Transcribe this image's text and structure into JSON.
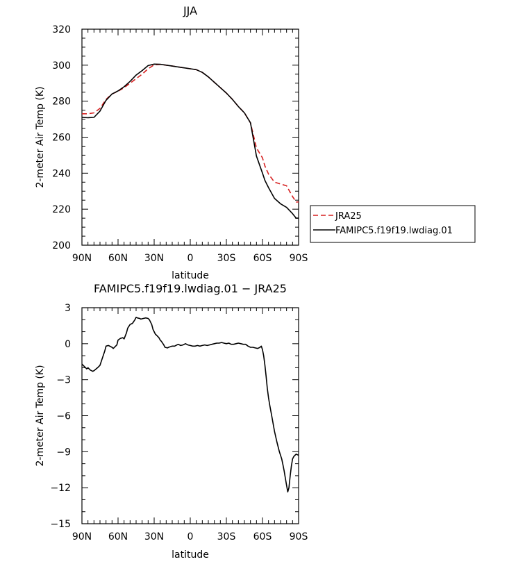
{
  "chart_data": [
    {
      "type": "line",
      "title": "JJA",
      "xlabel": "latitude",
      "ylabel": "2-meter Air Temp (K)",
      "xlim": [
        90,
        -90
      ],
      "ylim": [
        200,
        320
      ],
      "x_ticks": [
        "90N",
        "60N",
        "30N",
        "0",
        "30S",
        "60S",
        "90S"
      ],
      "y_ticks": [
        "200",
        "220",
        "240",
        "260",
        "280",
        "300",
        "320"
      ],
      "legend": "right",
      "series": [
        {
          "name": "JRA25",
          "color": "#d61f1f",
          "dash": "dashed",
          "x": [
            90,
            85,
            80,
            75,
            70,
            65,
            60,
            55,
            50,
            45,
            40,
            35,
            30,
            25,
            20,
            15,
            10,
            5,
            0,
            -5,
            -10,
            -15,
            -20,
            -25,
            -30,
            -35,
            -40,
            -45,
            -50,
            -55,
            -60,
            -62,
            -65,
            -70,
            -75,
            -80,
            -85,
            -88,
            -90
          ],
          "y": [
            273,
            273,
            273.5,
            276,
            281,
            284,
            285.5,
            287.5,
            290,
            292.5,
            295,
            298,
            300.2,
            300.4,
            300,
            299.5,
            299,
            298.5,
            298,
            297.5,
            296,
            293.5,
            290.5,
            287.5,
            284.5,
            281,
            277,
            273.5,
            268,
            254,
            248.5,
            244,
            239.5,
            235,
            234,
            233,
            227,
            224,
            224
          ]
        },
        {
          "name": "FAMIPC5.f19f19.lwdiag.01",
          "color": "#000000",
          "dash": "solid",
          "x": [
            90,
            85,
            80,
            75,
            70,
            65,
            60,
            55,
            50,
            45,
            40,
            35,
            30,
            25,
            20,
            15,
            10,
            5,
            0,
            -5,
            -10,
            -15,
            -20,
            -25,
            -30,
            -35,
            -40,
            -45,
            -50,
            -55,
            -60,
            -62,
            -65,
            -70,
            -75,
            -80,
            -85,
            -88,
            -90
          ],
          "y": [
            271,
            270.8,
            271,
            274.5,
            280.5,
            284,
            285.7,
            288,
            291,
            294.5,
            297,
            299.8,
            300.6,
            300.5,
            300,
            299.5,
            299,
            298.5,
            298,
            297.5,
            296,
            293.5,
            290.5,
            287.5,
            284.5,
            281,
            277,
            273.5,
            268,
            249.5,
            240,
            236,
            232,
            226,
            223,
            221,
            217.5,
            215,
            215
          ]
        }
      ]
    },
    {
      "type": "line",
      "title": "FAMIPC5.f19f19.lwdiag.01 − JRA25",
      "xlabel": "latitude",
      "ylabel": "2-meter Air Temp (K)",
      "xlim": [
        90,
        -90
      ],
      "ylim": [
        -15,
        3
      ],
      "x_ticks": [
        "90N",
        "60N",
        "30N",
        "0",
        "30S",
        "60S",
        "90S"
      ],
      "y_ticks": [
        "−15",
        "−12",
        "−9",
        "−6",
        "−3",
        "0",
        "3"
      ],
      "series": [
        {
          "color": "#000000",
          "dash": "solid",
          "x": [
            90,
            88,
            86,
            85,
            83,
            81,
            80,
            77,
            75,
            74,
            71,
            70,
            68,
            65,
            64,
            61,
            60,
            58,
            56,
            55,
            53,
            52,
            50,
            48,
            46,
            45,
            44,
            42,
            41,
            39,
            37,
            35,
            34,
            32,
            31,
            29,
            28,
            26,
            25,
            24,
            22,
            21,
            19,
            18,
            15,
            13,
            12,
            10,
            8,
            6,
            4,
            2,
            0,
            -2,
            -4,
            -6,
            -8,
            -10,
            -12,
            -14,
            -16,
            -18,
            -20,
            -22,
            -24,
            -26,
            -28,
            -30,
            -32,
            -34,
            -36,
            -38,
            -40,
            -42,
            -44,
            -46,
            -48,
            -50,
            -52,
            -54,
            -56,
            -58,
            -59,
            -60,
            -61,
            -62,
            -63,
            -64,
            -65,
            -66,
            -68,
            -70,
            -72,
            -74,
            -76,
            -77,
            -78,
            -79,
            -80,
            -81,
            -82,
            -83,
            -84,
            -85,
            -86,
            -87,
            -88,
            -90
          ],
          "y": [
            -1.7,
            -1.9,
            -2.1,
            -2.0,
            -2.2,
            -2.3,
            -2.25,
            -2.0,
            -1.8,
            -1.5,
            -0.6,
            -0.2,
            -0.15,
            -0.3,
            -0.4,
            -0.1,
            0.3,
            0.45,
            0.5,
            0.4,
            0.9,
            1.3,
            1.6,
            1.7,
            2.0,
            2.2,
            2.15,
            2.1,
            2.05,
            2.1,
            2.15,
            2.1,
            2.0,
            1.6,
            1.2,
            0.8,
            0.7,
            0.5,
            0.3,
            0.2,
            -0.1,
            -0.3,
            -0.35,
            -0.3,
            -0.2,
            -0.2,
            -0.15,
            -0.05,
            -0.15,
            -0.1,
            0.0,
            -0.1,
            -0.15,
            -0.2,
            -0.2,
            -0.15,
            -0.2,
            -0.15,
            -0.1,
            -0.15,
            -0.1,
            -0.05,
            0.0,
            0.05,
            0.05,
            0.1,
            0.05,
            0.0,
            0.05,
            -0.05,
            -0.05,
            0.0,
            0.05,
            0.0,
            -0.05,
            -0.05,
            -0.2,
            -0.3,
            -0.3,
            -0.35,
            -0.4,
            -0.3,
            -0.2,
            -0.5,
            -1.0,
            -1.8,
            -2.7,
            -3.7,
            -4.5,
            -5.1,
            -6.2,
            -7.3,
            -8.2,
            -9.0,
            -9.6,
            -10.1,
            -10.6,
            -11.2,
            -11.8,
            -12.35,
            -12.0,
            -11.0,
            -10.2,
            -9.6,
            -9.4,
            -9.3,
            -9.2,
            -9.3
          ]
        }
      ]
    }
  ]
}
